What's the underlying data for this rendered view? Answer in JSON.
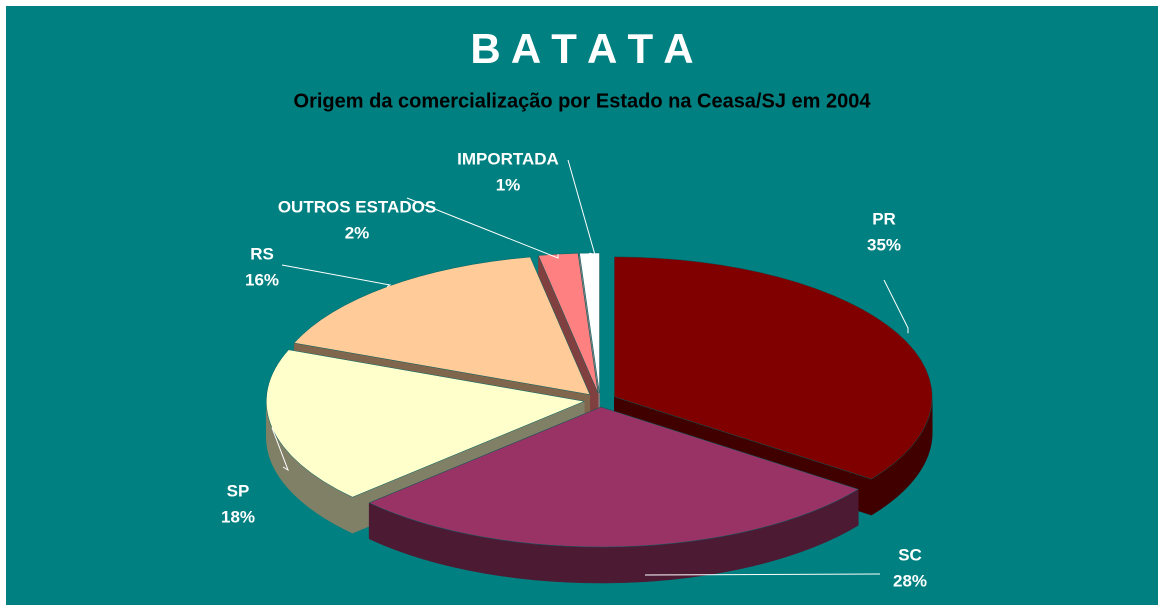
{
  "chart_data": {
    "type": "pie",
    "title": "B A T A T A",
    "subtitle": "Origem da comercialização  por Estado na Ceasa/SJ em 2004",
    "categories": [
      "PR",
      "SC",
      "SP",
      "RS",
      "OUTROS ESTADOS",
      "IMPORTADA"
    ],
    "values": [
      35,
      28,
      18,
      16,
      2,
      1
    ],
    "value_labels": [
      "35%",
      "28%",
      "18%",
      "16%",
      "2%",
      "1%"
    ],
    "colors": [
      "#800000",
      "#993366",
      "#ffffcc",
      "#ffcc99",
      "#ff8080",
      "#ffffff"
    ],
    "start_angle": -90,
    "direction": "clockwise",
    "exploded": true,
    "three_d": true
  }
}
